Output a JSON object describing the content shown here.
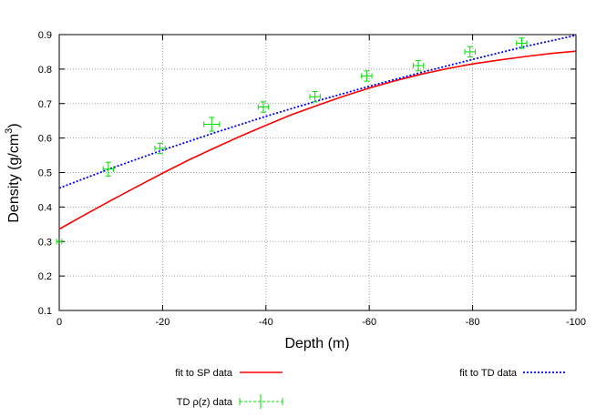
{
  "chart_data": {
    "type": "line",
    "xlabel": "Depth (m)",
    "ylabel_main": "Density (g/cm",
    "ylabel_sup": "3",
    "ylabel_close": ")",
    "xlim": [
      0,
      -100
    ],
    "ylim": [
      0.1,
      0.9
    ],
    "xticks": [
      0,
      -20,
      -40,
      -60,
      -80,
      -100
    ],
    "xtick_labels": [
      "0",
      "-20",
      "-40",
      "-60",
      "-80",
      "-100"
    ],
    "yticks": [
      0.1,
      0.2,
      0.3,
      0.4,
      0.5,
      0.6,
      0.7,
      0.8,
      0.9
    ],
    "ytick_labels": [
      "0.1",
      "0.2",
      "0.3",
      "0.4",
      "0.5",
      "0.6",
      "0.7",
      "0.8",
      "0.9"
    ],
    "grid": true,
    "legend_position": "below",
    "series": [
      {
        "name": "fit to SP data",
        "style": "line",
        "color": "#ff0000",
        "x": [
          0,
          -5,
          -10,
          -15,
          -20,
          -25,
          -30,
          -35,
          -40,
          -45,
          -50,
          -55,
          -60,
          -65,
          -70,
          -75,
          -80,
          -85,
          -90,
          -95,
          -100
        ],
        "y": [
          0.336,
          0.378,
          0.419,
          0.459,
          0.498,
          0.536,
          0.571,
          0.605,
          0.637,
          0.668,
          0.695,
          0.721,
          0.745,
          0.766,
          0.785,
          0.801,
          0.815,
          0.826,
          0.836,
          0.845,
          0.852
        ]
      },
      {
        "name": "fit to TD data",
        "style": "dotted",
        "color": "#0000ff",
        "x": [
          0,
          -10,
          -20,
          -30,
          -40,
          -50,
          -60,
          -70,
          -80,
          -90,
          -100
        ],
        "y": [
          0.455,
          0.512,
          0.565,
          0.615,
          0.663,
          0.708,
          0.75,
          0.79,
          0.828,
          0.865,
          0.898
        ]
      },
      {
        "name": "TD ρ(z) data",
        "style": "errorbars",
        "color": "#00dd00",
        "x": [
          0,
          -9.5,
          -19.5,
          -29.5,
          -39.5,
          -49.5,
          -59.5,
          -69.5,
          -79.5,
          -89.5
        ],
        "y": [
          0.3,
          0.51,
          0.57,
          0.64,
          0.69,
          0.72,
          0.78,
          0.81,
          0.85,
          0.875
        ],
        "yerr": [
          0.0,
          0.02,
          0.015,
          0.02,
          0.015,
          0.015,
          0.015,
          0.015,
          0.015,
          0.015
        ],
        "xerr": [
          0.5,
          1.0,
          1.0,
          1.5,
          1.0,
          1.0,
          1.0,
          1.0,
          1.0,
          1.0
        ]
      }
    ]
  }
}
